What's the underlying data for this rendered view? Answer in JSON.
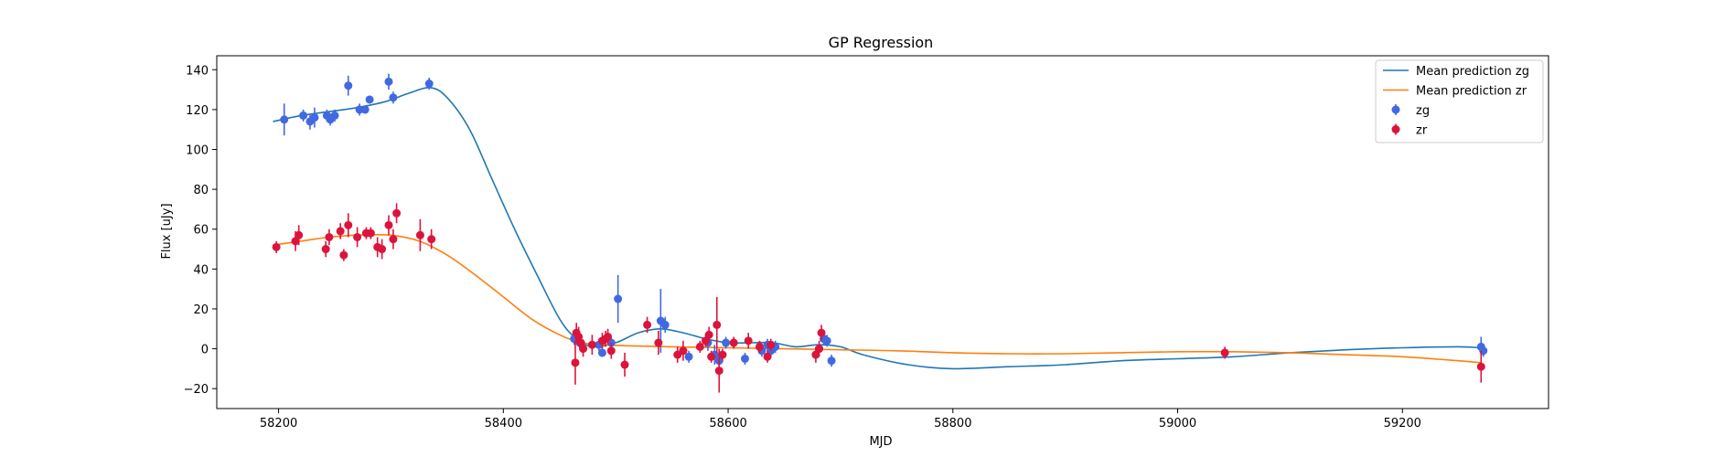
{
  "chart_data": {
    "type": "scatter",
    "title": "GP Regression",
    "xlabel": "MJD",
    "ylabel": "Flux [uJy]",
    "xlim": [
      58145,
      59330
    ],
    "ylim": [
      -30,
      147
    ],
    "x_ticks": [
      58200,
      58400,
      58600,
      58800,
      59000,
      59200
    ],
    "y_ticks": [
      -20,
      0,
      20,
      40,
      60,
      80,
      100,
      120,
      140
    ],
    "grid": false,
    "legend_position": "top-right",
    "series": [
      {
        "name": "Mean prediction zg",
        "kind": "line",
        "color": "#1f77b4",
        "x": [
          58195,
          58220,
          58245,
          58270,
          58295,
          58315,
          58335,
          58350,
          58370,
          58390,
          58410,
          58430,
          58450,
          58465,
          58480,
          58500,
          58520,
          58540,
          58560,
          58580,
          58600,
          58620,
          58640,
          58660,
          58680,
          58700,
          58720,
          58760,
          58800,
          58850,
          58900,
          58950,
          59000,
          59050,
          59100,
          59150,
          59200,
          59250,
          59270
        ],
        "y": [
          114,
          117,
          119,
          121,
          124,
          128,
          131,
          126,
          110,
          85,
          60,
          37,
          15,
          5,
          1,
          3,
          8,
          10,
          8,
          5,
          3,
          3,
          3,
          1,
          2,
          1,
          -3,
          -8,
          -10,
          -9,
          -8,
          -6,
          -5,
          -4,
          -2,
          -0.5,
          0.5,
          1,
          0.5
        ]
      },
      {
        "name": "Mean prediction zr",
        "kind": "line",
        "color": "#ff7f0e",
        "x": [
          58195,
          58220,
          58245,
          58270,
          58300,
          58325,
          58350,
          58375,
          58400,
          58425,
          58450,
          58470,
          58490,
          58510,
          58550,
          58600,
          58650,
          58700,
          58750,
          58800,
          58850,
          58900,
          58950,
          59000,
          59050,
          59100,
          59150,
          59200,
          59250,
          59270
        ],
        "y": [
          52,
          54,
          56,
          57,
          57,
          54,
          47,
          37,
          26,
          15,
          7,
          3,
          2,
          1.5,
          1,
          0.5,
          0,
          -0.5,
          -1,
          -2,
          -2.5,
          -2.5,
          -2,
          -1.5,
          -1.5,
          -2,
          -3,
          -4,
          -6,
          -7
        ]
      },
      {
        "name": "zg",
        "kind": "points",
        "color": "#4169e1",
        "points": [
          [
            58205,
            115,
            8
          ],
          [
            58222,
            117,
            3
          ],
          [
            58228,
            114,
            4
          ],
          [
            58232,
            116,
            5
          ],
          [
            58243,
            117,
            3
          ],
          [
            58246,
            115,
            3
          ],
          [
            58250,
            117,
            3
          ],
          [
            58262,
            132,
            5
          ],
          [
            58272,
            120,
            3
          ],
          [
            58277,
            120,
            2
          ],
          [
            58281,
            125,
            2
          ],
          [
            58298,
            134,
            4
          ],
          [
            58302,
            126,
            3
          ],
          [
            58334,
            133,
            3
          ],
          [
            58463,
            5,
            3
          ],
          [
            58468,
            3,
            3
          ],
          [
            58485,
            2,
            3
          ],
          [
            58488,
            -2,
            2
          ],
          [
            58496,
            3,
            3
          ],
          [
            58502,
            25,
            12
          ],
          [
            58540,
            14,
            16
          ],
          [
            58544,
            12,
            4
          ],
          [
            58565,
            -4,
            3
          ],
          [
            58582,
            3,
            4
          ],
          [
            58588,
            -3,
            5
          ],
          [
            58592,
            -6,
            3
          ],
          [
            58598,
            3,
            3
          ],
          [
            58615,
            -5,
            3
          ],
          [
            58630,
            -1,
            3
          ],
          [
            58635,
            2,
            3
          ],
          [
            58638,
            -1,
            3
          ],
          [
            58642,
            1,
            3
          ],
          [
            58685,
            5,
            3
          ],
          [
            58688,
            4,
            3
          ],
          [
            58692,
            -6,
            3
          ],
          [
            59270,
            1,
            5
          ],
          [
            59272,
            -1,
            3
          ]
        ]
      },
      {
        "name": "zr",
        "kind": "points",
        "color": "#dc143c",
        "points": [
          [
            58198,
            51,
            3
          ],
          [
            58215,
            54,
            5
          ],
          [
            58218,
            57,
            5
          ],
          [
            58242,
            50,
            4
          ],
          [
            58245,
            56,
            4
          ],
          [
            58255,
            59,
            4
          ],
          [
            58258,
            47,
            3
          ],
          [
            58262,
            62,
            6
          ],
          [
            58270,
            56,
            5
          ],
          [
            58278,
            58,
            3
          ],
          [
            58282,
            58,
            3
          ],
          [
            58288,
            51,
            5
          ],
          [
            58292,
            50,
            5
          ],
          [
            58298,
            62,
            5
          ],
          [
            58302,
            55,
            5
          ],
          [
            58305,
            68,
            5
          ],
          [
            58326,
            57,
            8
          ],
          [
            58336,
            55,
            5
          ],
          [
            58464,
            -7,
            11
          ],
          [
            58465,
            8,
            5
          ],
          [
            58467,
            6,
            5
          ],
          [
            58469,
            3,
            4
          ],
          [
            58471,
            0,
            4
          ],
          [
            58479,
            2,
            5
          ],
          [
            58488,
            4,
            4
          ],
          [
            58491,
            5,
            4
          ],
          [
            58493,
            6,
            4
          ],
          [
            58496,
            -1,
            4
          ],
          [
            58508,
            -8,
            6
          ],
          [
            58528,
            12,
            4
          ],
          [
            58538,
            3,
            6
          ],
          [
            58555,
            -3,
            4
          ],
          [
            58560,
            -1,
            5
          ],
          [
            58575,
            1,
            3
          ],
          [
            58580,
            4,
            3
          ],
          [
            58583,
            7,
            4
          ],
          [
            58585,
            -4,
            3
          ],
          [
            58590,
            12,
            14
          ],
          [
            58592,
            -11,
            11
          ],
          [
            58595,
            -3,
            3
          ],
          [
            58605,
            3,
            3
          ],
          [
            58618,
            4,
            4
          ],
          [
            58628,
            1,
            3
          ],
          [
            58635,
            -4,
            3
          ],
          [
            58638,
            2,
            3
          ],
          [
            58678,
            -3,
            4
          ],
          [
            58681,
            0,
            4
          ],
          [
            58683,
            8,
            4
          ],
          [
            59042,
            -2,
            3
          ],
          [
            59270,
            -9,
            8
          ]
        ]
      }
    ]
  },
  "legend": [
    {
      "label": "Mean prediction zg",
      "color": "#1f77b4",
      "kind": "line"
    },
    {
      "label": "Mean prediction zr",
      "color": "#ff7f0e",
      "kind": "line"
    },
    {
      "label": "zg",
      "color": "#4169e1",
      "kind": "points"
    },
    {
      "label": "zr",
      "color": "#dc143c",
      "kind": "points"
    }
  ]
}
